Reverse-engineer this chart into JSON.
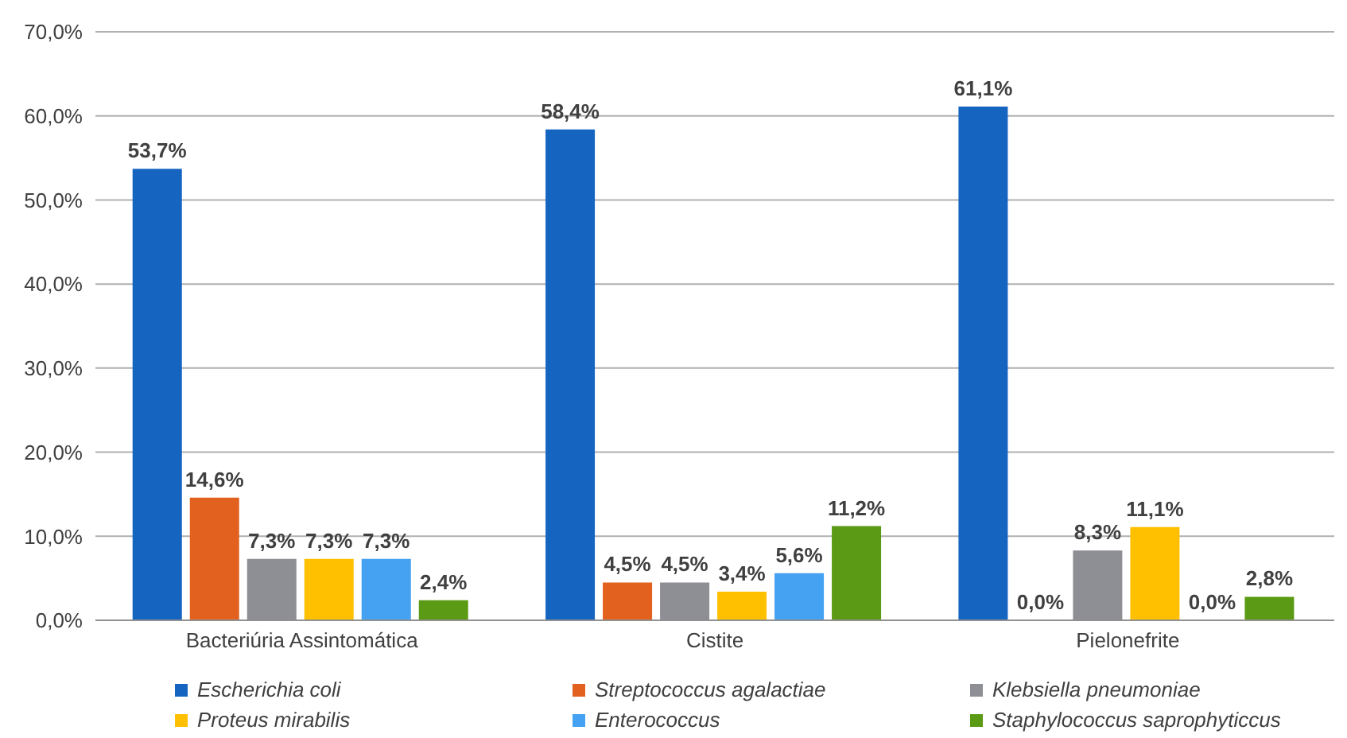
{
  "chart_data": {
    "type": "bar",
    "categories": [
      "Bacteriúria Assintomática",
      "Cistite",
      "Pielonefrite"
    ],
    "series": [
      {
        "name": "Escherichia coli",
        "color": "#1565c0",
        "values": [
          53.7,
          58.4,
          61.1
        ],
        "value_labels": [
          "53,7%",
          "58,4%",
          "61,1%"
        ]
      },
      {
        "name": "Streptococcus agalactiae",
        "color": "#e2611f",
        "values": [
          14.6,
          4.5,
          0
        ],
        "value_labels": [
          "14,6%",
          "4,5%",
          "0,0%"
        ]
      },
      {
        "name": "Klebsiella pneumoniae",
        "color": "#8e8e95",
        "values": [
          7.3,
          4.5,
          8.3
        ],
        "value_labels": [
          "7,3%",
          "4,5%",
          "8,3%"
        ]
      },
      {
        "name": "Proteus mirabilis",
        "color": "#ffc000",
        "values": [
          7.3,
          3.4,
          11.1
        ],
        "value_labels": [
          "7,3%",
          "3,4%",
          "11,1%"
        ]
      },
      {
        "name": "Enterococcus",
        "color": "#45a1f2",
        "values": [
          7.3,
          5.6,
          0
        ],
        "value_labels": [
          "7,3%",
          "5,6%",
          "0,0%"
        ]
      },
      {
        "name": "Staphylococcus saprophyticcus",
        "color": "#5b9a14",
        "values": [
          2.4,
          11.2,
          2.8
        ],
        "value_labels": [
          "2,4%",
          "11,2%",
          "2,8%"
        ]
      }
    ],
    "ylim": [
      0,
      70
    ],
    "yticks": [
      {
        "value": 0,
        "label": "0,0%"
      },
      {
        "value": 10,
        "label": "10,0%"
      },
      {
        "value": 20,
        "label": "20,0%"
      },
      {
        "value": 30,
        "label": "30,0%"
      },
      {
        "value": 40,
        "label": "40,0%"
      },
      {
        "value": 50,
        "label": "50,0%"
      },
      {
        "value": 60,
        "label": "60,0%"
      },
      {
        "value": 70,
        "label": "70,0%"
      }
    ],
    "grid": "y",
    "legend": "bottom"
  }
}
